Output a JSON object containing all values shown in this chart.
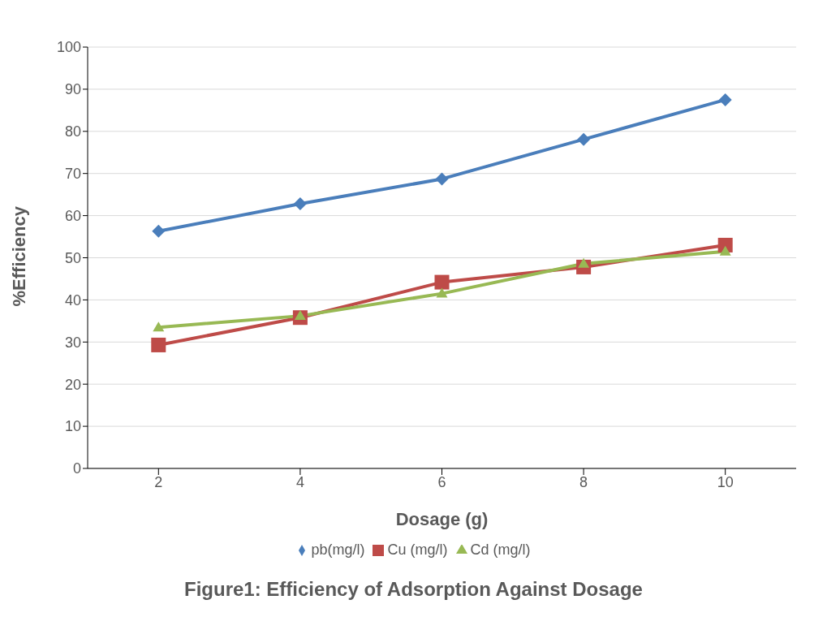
{
  "chart_data": {
    "type": "line",
    "title": "Figure1: Efficiency  of Adsorption Against Dosage",
    "xlabel": "Dosage (g)",
    "ylabel": "%Efficiency",
    "categories": [
      "2",
      "4",
      "6",
      "8",
      "10"
    ],
    "series": [
      {
        "name": "pb(mg/l)",
        "color": "#4a7ebb",
        "marker": "diamond",
        "values": [
          56.3,
          62.8,
          68.7,
          78.1,
          87.5
        ]
      },
      {
        "name": "Cu (mg/l)",
        "color": "#be4b48",
        "marker": "square",
        "values": [
          29.3,
          35.8,
          44.2,
          47.8,
          53.0
        ]
      },
      {
        "name": "Cd (mg/l)",
        "color": "#98b954",
        "marker": "triangle",
        "values": [
          33.5,
          36.2,
          41.5,
          48.6,
          51.5
        ]
      }
    ],
    "ylim": [
      0,
      100
    ],
    "yticks": [
      0,
      10,
      20,
      30,
      40,
      50,
      60,
      70,
      80,
      90,
      100
    ],
    "grid": "y",
    "legend": "bottom",
    "line_style": "solid"
  }
}
